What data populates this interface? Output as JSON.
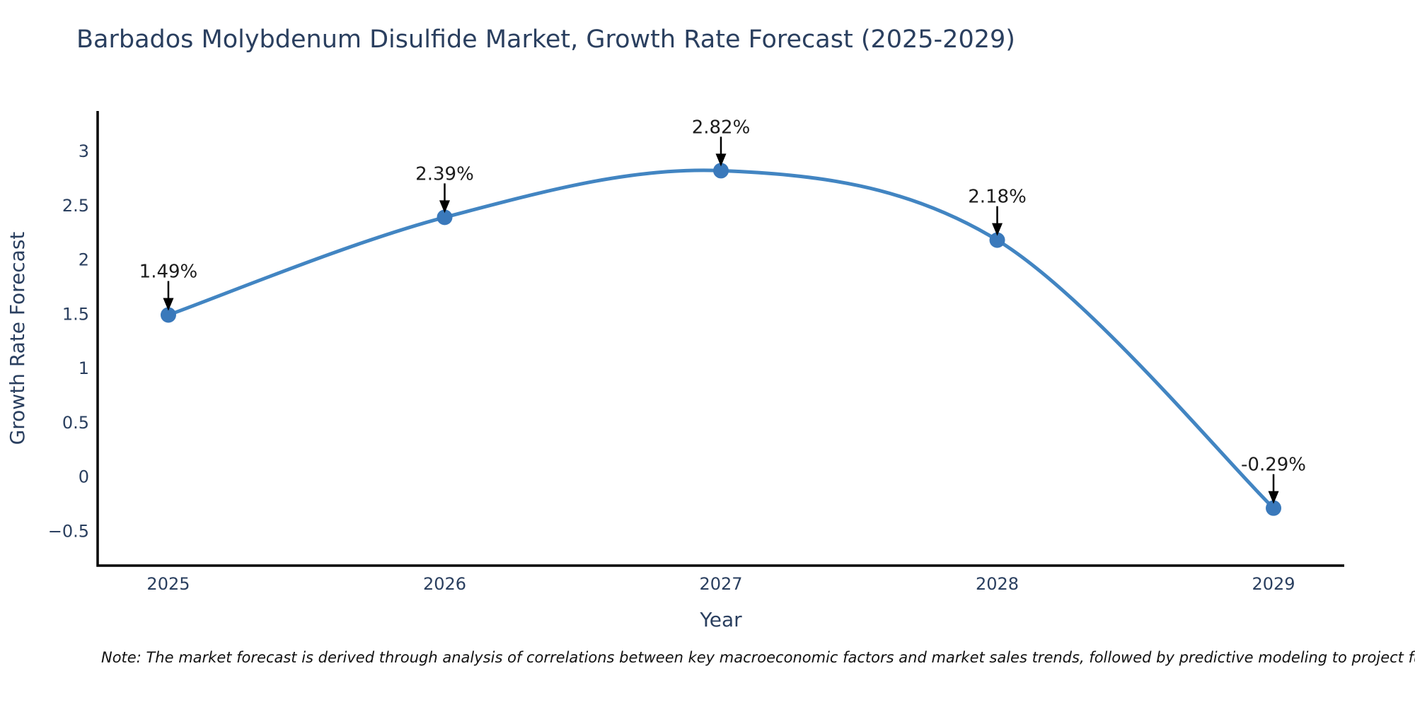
{
  "title": "Barbados Molybdenum Disulfide Market, Growth Rate Forecast (2025-2029)",
  "note": "Note: The market forecast is derived through analysis of correlations between key macroeconomic factors and market sales trends, followed by predictive modeling to project future sales.",
  "colors": {
    "line": "#4285c2",
    "marker": "#3a79bb",
    "axis": "#000000",
    "tick_text": "#2a3f5f",
    "annotation_text": "#1c1c1c",
    "arrow": "#000000",
    "background": "#ffffff"
  },
  "chart_data": {
    "type": "line",
    "title": "Barbados Molybdenum Disulfide Market, Growth Rate Forecast (2025-2029)",
    "xlabel": "Year",
    "ylabel": "Growth Rate Forecast",
    "x": [
      2025,
      2026,
      2027,
      2028,
      2029
    ],
    "y": [
      1.49,
      2.39,
      2.82,
      2.18,
      -0.29
    ],
    "point_labels": [
      "1.49%",
      "2.39%",
      "2.82%",
      "2.18%",
      "-0.29%"
    ],
    "xtick_labels": [
      "2025",
      "2026",
      "2027",
      "2028",
      "2029"
    ],
    "ytick_values": [
      3,
      2.5,
      2,
      1.5,
      1,
      0.5,
      0,
      -0.5
    ],
    "ytick_labels": [
      "3",
      "2.5",
      "2",
      "1.5",
      "1",
      "0.5",
      "0",
      "−0.5"
    ],
    "xlim": [
      2024.744,
      2029.256
    ],
    "ylim": [
      -0.82,
      3.37
    ],
    "grid": false,
    "legend": "none",
    "line_shape": "spline",
    "marker": "circle"
  }
}
